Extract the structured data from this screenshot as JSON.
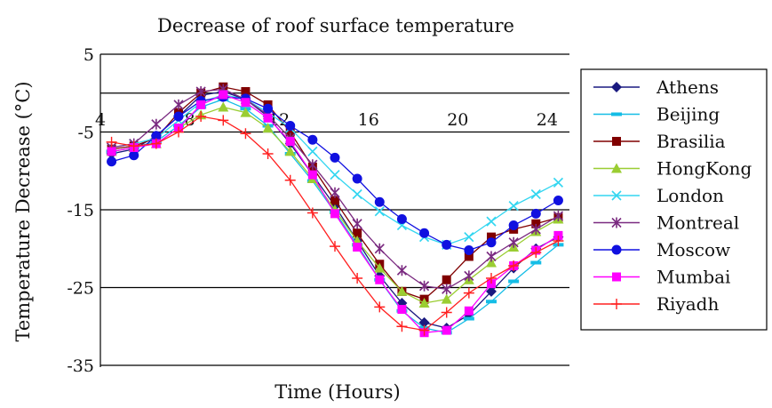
{
  "chart_data": {
    "type": "line",
    "title": "Decrease of roof surface temperature",
    "xlabel": "Time (Hours)",
    "ylabel": "Temperature Decrease (°C)",
    "xlim": [
      4,
      25
    ],
    "ylim": [
      -35,
      5
    ],
    "xticks": [
      4,
      8,
      12,
      16,
      20,
      24
    ],
    "yticks": [
      5,
      -5,
      -15,
      -25,
      -35
    ],
    "grid": "horizontal",
    "legend_position": "right",
    "x": [
      4.5,
      5.5,
      6.5,
      7.5,
      8.5,
      9.5,
      10.5,
      11.5,
      12.5,
      13.5,
      14.5,
      15.5,
      16.5,
      17.5,
      18.5,
      19.5,
      20.5,
      21.5,
      22.5,
      23.5,
      24.5
    ],
    "series": [
      {
        "name": "Athens",
        "color": "#1a1a80",
        "marker": "diamond",
        "values": [
          -7.8,
          -7.2,
          -5.5,
          -3.0,
          -0.3,
          0.2,
          -0.8,
          -3.0,
          -6.5,
          -10.5,
          -14.5,
          -19.0,
          -23.5,
          -27.0,
          -29.5,
          -30.2,
          -28.5,
          -25.5,
          -22.5,
          -20.0,
          -18.5
        ]
      },
      {
        "name": "Beijing",
        "color": "#14bde6",
        "marker": "dash",
        "values": [
          -7.5,
          -7.0,
          -6.2,
          -4.2,
          -1.8,
          -0.8,
          -2.0,
          -4.2,
          -7.8,
          -11.3,
          -15.3,
          -19.5,
          -24.0,
          -28.0,
          -30.2,
          -30.8,
          -29.0,
          -26.8,
          -24.2,
          -21.8,
          -19.5
        ]
      },
      {
        "name": "Brasilia",
        "color": "#800000",
        "marker": "square",
        "values": [
          -7.2,
          -6.8,
          -5.8,
          -2.5,
          0.0,
          0.8,
          0.2,
          -1.5,
          -5.0,
          -9.5,
          -13.8,
          -18.0,
          -22.0,
          -25.5,
          -26.5,
          -24.0,
          -21.0,
          -18.5,
          -17.5,
          -16.8,
          -16.0
        ]
      },
      {
        "name": "HongKong",
        "color": "#9acd32",
        "marker": "triangle",
        "values": [
          -7.5,
          -7.0,
          -6.5,
          -4.5,
          -2.8,
          -1.8,
          -2.5,
          -4.5,
          -7.5,
          -11.0,
          -15.0,
          -19.0,
          -22.5,
          -25.5,
          -27.0,
          -26.5,
          -24.0,
          -21.8,
          -19.8,
          -17.8,
          -16.2
        ]
      },
      {
        "name": "London",
        "color": "#33d6f0",
        "marker": "x",
        "values": [
          -7.0,
          -6.5,
          -5.8,
          -3.5,
          -1.2,
          -0.2,
          -0.8,
          -2.5,
          -4.5,
          -7.5,
          -10.5,
          -13.0,
          -15.2,
          -17.0,
          -18.5,
          -19.5,
          -18.5,
          -16.5,
          -14.5,
          -13.0,
          -11.5
        ]
      },
      {
        "name": "Montreal",
        "color": "#7a2a80",
        "marker": "asterisk",
        "values": [
          -7.0,
          -6.5,
          -4.0,
          -1.5,
          0.2,
          0.5,
          -0.8,
          -2.8,
          -5.8,
          -9.2,
          -12.8,
          -16.8,
          -20.0,
          -22.8,
          -24.8,
          -25.2,
          -23.5,
          -21.0,
          -19.2,
          -17.5,
          -15.8
        ]
      },
      {
        "name": "Moscow",
        "color": "#1010e0",
        "marker": "circle",
        "values": [
          -8.8,
          -8.0,
          -5.5,
          -3.0,
          -1.0,
          -0.5,
          -0.7,
          -2.0,
          -4.2,
          -6.0,
          -8.3,
          -11.0,
          -14.0,
          -16.2,
          -18.0,
          -19.5,
          -20.2,
          -19.2,
          -17.0,
          -15.5,
          -13.8
        ]
      },
      {
        "name": "Mumbai",
        "color": "#ff00ff",
        "marker": "square",
        "values": [
          -7.5,
          -7.0,
          -6.5,
          -4.5,
          -1.5,
          -0.2,
          -1.2,
          -3.2,
          -6.2,
          -10.5,
          -15.5,
          -19.8,
          -24.0,
          -27.8,
          -30.8,
          -30.5,
          -28.0,
          -24.5,
          -22.2,
          -20.2,
          -18.3
        ]
      },
      {
        "name": "Riyadh",
        "color": "#ff2020",
        "marker": "plus",
        "values": [
          -6.3,
          -6.8,
          -6.5,
          -5.0,
          -3.0,
          -3.5,
          -5.2,
          -7.8,
          -11.2,
          -15.4,
          -19.7,
          -23.8,
          -27.5,
          -30.0,
          -30.5,
          -28.2,
          -25.7,
          -23.8,
          -22.2,
          -20.5,
          -19.0
        ]
      }
    ]
  }
}
